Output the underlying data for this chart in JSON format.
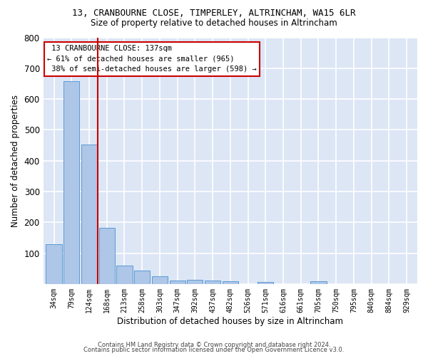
{
  "title": "13, CRANBOURNE CLOSE, TIMPERLEY, ALTRINCHAM, WA15 6LR",
  "subtitle": "Size of property relative to detached houses in Altrincham",
  "xlabel": "Distribution of detached houses by size in Altrincham",
  "ylabel": "Number of detached properties",
  "bar_color": "#aec6e8",
  "bar_edge_color": "#5b9bd5",
  "background_color": "#dce6f5",
  "grid_color": "#ffffff",
  "fig_color": "#ffffff",
  "annotation_box_color": "#cc0000",
  "vertical_line_color": "#cc0000",
  "categories": [
    "34sqm",
    "79sqm",
    "124sqm",
    "168sqm",
    "213sqm",
    "258sqm",
    "303sqm",
    "347sqm",
    "392sqm",
    "437sqm",
    "482sqm",
    "526sqm",
    "571sqm",
    "616sqm",
    "661sqm",
    "705sqm",
    "750sqm",
    "795sqm",
    "840sqm",
    "884sqm",
    "929sqm"
  ],
  "values": [
    128,
    658,
    453,
    183,
    60,
    43,
    25,
    12,
    13,
    11,
    9,
    0,
    7,
    0,
    0,
    8,
    0,
    0,
    0,
    0,
    0
  ],
  "property_label": "13 CRANBOURNE CLOSE: 137sqm",
  "pct_smaller": "61% of detached houses are smaller (965)",
  "pct_larger": "38% of semi-detached houses are larger (598)",
  "vline_x": 2.5,
  "ylim": [
    0,
    800
  ],
  "yticks": [
    0,
    100,
    200,
    300,
    400,
    500,
    600,
    700,
    800
  ],
  "footer_line1": "Contains HM Land Registry data © Crown copyright and database right 2024.",
  "footer_line2": "Contains public sector information licensed under the Open Government Licence v3.0."
}
